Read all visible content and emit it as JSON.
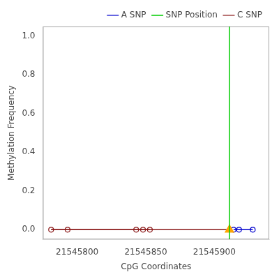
{
  "chart_data": {
    "type": "line",
    "xlabel": "CpG Coordinates",
    "ylabel": "Methylation Frequency",
    "xlim": [
      21545775,
      21545940
    ],
    "ylim": [
      -0.05,
      1.05
    ],
    "xticks": [
      21545800,
      21545850,
      21545900
    ],
    "yticks": [
      {
        "value": 0.0,
        "label": "0.0"
      },
      {
        "value": 0.2,
        "label": "0.2"
      },
      {
        "value": 0.4,
        "label": "0.4"
      },
      {
        "value": 0.6,
        "label": "0.6"
      },
      {
        "value": 0.8,
        "label": "0.8"
      },
      {
        "value": 1.0,
        "label": "1.0"
      }
    ],
    "grid": false,
    "legend": "upper right",
    "series": [
      {
        "name": "A SNP",
        "color": "#0000CD",
        "marker": "circle",
        "x": [
          21545914,
          21545918,
          21545928
        ],
        "values": [
          0.0,
          0.0,
          0.0
        ]
      },
      {
        "name": "C SNP",
        "color": "#8B1A1A",
        "marker": "circle",
        "x": [
          21545781,
          21545793,
          21545843,
          21545848,
          21545853
        ],
        "values": [
          0.0,
          0.0,
          0.0,
          0.0,
          0.0
        ]
      },
      {
        "color": "#8B1A1A",
        "marker": "none",
        "x": [
          21545781,
          21545911
        ],
        "values": [
          0.0,
          0.0
        ]
      },
      {
        "name": "SNP Position",
        "type": "vline",
        "color": "#00CC00",
        "x": [
          21545911
        ]
      },
      {
        "type": "scatter",
        "color": "#FFA500",
        "marker": "triangle",
        "x": [
          21545911
        ],
        "values": [
          0.0
        ]
      }
    ]
  }
}
